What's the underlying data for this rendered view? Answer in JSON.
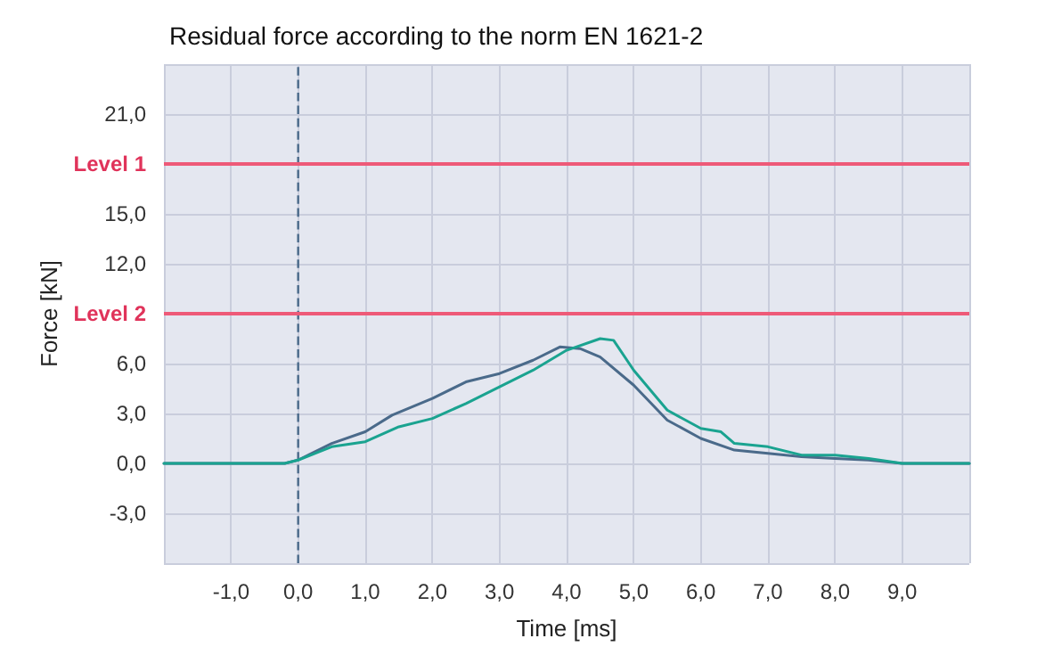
{
  "chart_data": {
    "type": "line",
    "title": "Residual force according to the norm EN 1621-2",
    "xlabel": "Time [ms]",
    "ylabel": "Force [kN]",
    "xlim": [
      -2,
      10
    ],
    "xticks": [
      {
        "value": -2,
        "label": null
      },
      {
        "value": -1,
        "label": "-1,0"
      },
      {
        "value": 0,
        "label": "0,0"
      },
      {
        "value": 1,
        "label": "1,0"
      },
      {
        "value": 2,
        "label": "2,0"
      },
      {
        "value": 3,
        "label": "3,0"
      },
      {
        "value": 4,
        "label": "4,0"
      },
      {
        "value": 5,
        "label": "5,0"
      },
      {
        "value": 6,
        "label": "6,0"
      },
      {
        "value": 7,
        "label": "7,0"
      },
      {
        "value": 8,
        "label": "8,0"
      },
      {
        "value": 9,
        "label": "9,0"
      },
      {
        "value": 10,
        "label": null
      }
    ],
    "ylim": [
      -6,
      24
    ],
    "yticks": [
      {
        "value": -6,
        "label": null
      },
      {
        "value": -3,
        "label": "-3,0"
      },
      {
        "value": 0,
        "label": "0,0"
      },
      {
        "value": 3,
        "label": "3,0"
      },
      {
        "value": 6,
        "label": "6,0"
      },
      {
        "value": 12,
        "label": "12,0"
      },
      {
        "value": 15,
        "label": "15,0"
      },
      {
        "value": 21,
        "label": "21,0"
      },
      {
        "value": 24,
        "label": null
      }
    ],
    "grid": true,
    "marker": "none",
    "line_style": "solid",
    "ref_lines": [
      {
        "axis": "y",
        "value": 18,
        "label": "Level 1",
        "color": "#ee5a78"
      },
      {
        "axis": "y",
        "value": 9,
        "label": "Level 2",
        "color": "#ee5a78"
      },
      {
        "axis": "x",
        "value": 0,
        "color": "#4a6a8a",
        "line_style": "dashed"
      }
    ],
    "series": [
      {
        "color": "#4a6a8a",
        "x": [
          -2,
          -1,
          -0.2,
          0,
          0.5,
          1,
          1.4,
          2,
          2.5,
          3,
          3.5,
          3.9,
          4.2,
          4.5,
          5,
          5.5,
          6,
          6.5,
          7,
          7.5,
          8,
          8.5,
          9,
          10
        ],
        "values": [
          0,
          0,
          0,
          0.2,
          1.2,
          1.9,
          2.9,
          3.9,
          4.9,
          5.4,
          6.2,
          7,
          6.9,
          6.4,
          4.7,
          2.6,
          1.5,
          0.8,
          0.6,
          0.4,
          0.3,
          0.2,
          0,
          0
        ]
      },
      {
        "color": "#1aa390",
        "x": [
          -2,
          -1,
          -0.2,
          0,
          0.5,
          1,
          1.5,
          2,
          2.5,
          3,
          3.5,
          4,
          4.5,
          4.7,
          5,
          5.5,
          6,
          6.3,
          6.5,
          7,
          7.5,
          8,
          8.5,
          9,
          10
        ],
        "values": [
          0,
          0,
          0,
          0.2,
          1,
          1.3,
          2.2,
          2.7,
          3.6,
          4.6,
          5.6,
          6.8,
          7.5,
          7.4,
          5.6,
          3.2,
          2.1,
          1.9,
          1.2,
          1,
          0.5,
          0.5,
          0.3,
          0,
          0
        ]
      }
    ]
  }
}
